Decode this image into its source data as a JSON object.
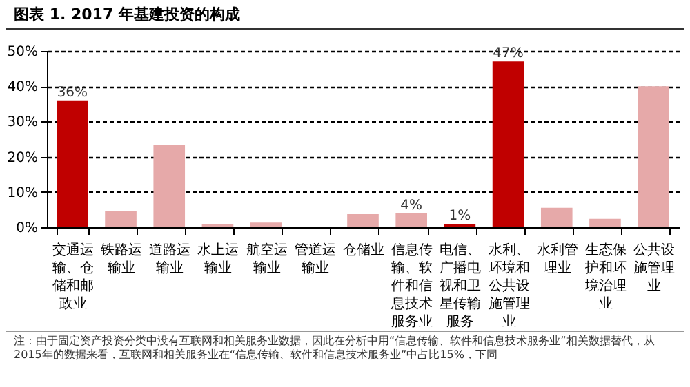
{
  "chart_data": {
    "type": "bar",
    "title": "图表 1. 2017 年基建投资的构成",
    "categories": [
      "交通运输、仓储和邮政业",
      "铁路运输业",
      "道路运输业",
      "水上运输业",
      "航空运输业",
      "管道运输业",
      "仓储业",
      "信息传输、软件和信息技术服务业",
      "电信、广播电视和卫星传输服务",
      "水利、环境和公共设施管理业",
      "水利管理业",
      "生态保护和环境治理业",
      "公共设施管理业"
    ],
    "values": [
      36,
      4.7,
      23.4,
      1.0,
      1.3,
      null,
      3.7,
      4,
      1,
      47,
      5.5,
      2.4,
      40
    ],
    "colors": [
      "#c00000",
      "#e6a9a9",
      "#e6a9a9",
      "#e6a9a9",
      "#e6a9a9",
      "#e6a9a9",
      "#e6a9a9",
      "#e6a9a9",
      "#c00000",
      "#c00000",
      "#e6a9a9",
      "#e6a9a9",
      "#e6a9a9"
    ],
    "value_labels": [
      "36%",
      null,
      null,
      null,
      null,
      null,
      null,
      "4%",
      "1%",
      "47%",
      null,
      null,
      null
    ],
    "ylim": [
      0,
      50
    ],
    "yticks": [
      {
        "value": 0,
        "label": "0%"
      },
      {
        "value": 10,
        "label": "10%"
      },
      {
        "value": 20,
        "label": "20%"
      },
      {
        "value": 30,
        "label": "30%"
      },
      {
        "value": 40,
        "label": "40%"
      },
      {
        "value": 50,
        "label": "50%"
      }
    ],
    "grid": "y",
    "annotations": [
      "注：由于固定资产投资分类中没有互联网和相关服务业数据，因此在分析中用“信息传输、软件和信息技术服务业”相关数据替代，从2015年的数据来看，互联网和相关服务业在“信息传输、软件和信息技术服务业”中占比15%，下同"
    ]
  }
}
